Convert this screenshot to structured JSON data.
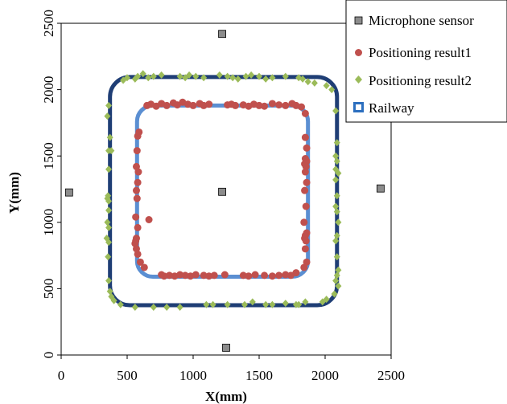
{
  "chart_data": {
    "type": "scatter",
    "xlabel": "X(mm)",
    "ylabel": "Y(mm)",
    "xlim": [
      0,
      2500
    ],
    "ylim": [
      0,
      2500
    ],
    "xticks": [
      "0",
      "500",
      "1000",
      "1500",
      "2000",
      "2500"
    ],
    "yticks": [
      "0",
      "500",
      "1000",
      "1500",
      "2000",
      "2500"
    ],
    "grid": false,
    "legend_position": "top-right",
    "legend": [
      {
        "key": "mic",
        "label": "Microphone sensor"
      },
      {
        "key": "r1",
        "label": "Positioning result1"
      },
      {
        "key": "r2",
        "label": "Positioning result2"
      },
      {
        "key": "rail",
        "label": "Railway"
      }
    ],
    "colors": {
      "mic": "#8c8c8c",
      "r1": "#c0504d",
      "r2": "#9bbb59",
      "rail_outer": "#1f3e75",
      "rail_inner": "#5b8fd2"
    },
    "series": [
      {
        "name": "Microphone sensor",
        "key": "mic",
        "points": [
          [
            1220,
            2420
          ],
          [
            60,
            1225
          ],
          [
            1220,
            1230
          ],
          [
            2420,
            1255
          ],
          [
            1250,
            55
          ]
        ]
      },
      {
        "name": "Railway",
        "key": "rail",
        "tracks": [
          {
            "track": "outer",
            "x_min": 370,
            "x_max": 2090,
            "y_min": 375,
            "y_max": 2095,
            "corner_radius": 150
          },
          {
            "track": "inner",
            "x_min": 575,
            "x_max": 1870,
            "y_min": 590,
            "y_max": 1880,
            "corner_radius": 120
          }
        ]
      },
      {
        "name": "Positioning result1",
        "key": "r1",
        "points": [
          [
            650,
            1880
          ],
          [
            680,
            1890
          ],
          [
            720,
            1875
          ],
          [
            760,
            1895
          ],
          [
            800,
            1880
          ],
          [
            850,
            1900
          ],
          [
            880,
            1885
          ],
          [
            920,
            1905
          ],
          [
            960,
            1890
          ],
          [
            1000,
            1880
          ],
          [
            1050,
            1895
          ],
          [
            1080,
            1880
          ],
          [
            1120,
            1890
          ],
          [
            1260,
            1885
          ],
          [
            1290,
            1890
          ],
          [
            1320,
            1880
          ],
          [
            1380,
            1885
          ],
          [
            1420,
            1875
          ],
          [
            1460,
            1890
          ],
          [
            1500,
            1880
          ],
          [
            1540,
            1875
          ],
          [
            1600,
            1895
          ],
          [
            1650,
            1885
          ],
          [
            1700,
            1880
          ],
          [
            1750,
            1895
          ],
          [
            1780,
            1880
          ],
          [
            1820,
            1870
          ],
          [
            1850,
            1820
          ],
          [
            590,
            1680
          ],
          [
            580,
            1650
          ],
          [
            575,
            1540
          ],
          [
            570,
            1420
          ],
          [
            585,
            1380
          ],
          [
            580,
            1300
          ],
          [
            570,
            1240
          ],
          [
            575,
            1180
          ],
          [
            565,
            1040
          ],
          [
            665,
            1020
          ],
          [
            580,
            960
          ],
          [
            570,
            880
          ],
          [
            565,
            860
          ],
          [
            560,
            840
          ],
          [
            570,
            800
          ],
          [
            580,
            760
          ],
          [
            600,
            700
          ],
          [
            630,
            660
          ],
          [
            1850,
            1640
          ],
          [
            1860,
            1560
          ],
          [
            1850,
            1480
          ],
          [
            1860,
            1460
          ],
          [
            1845,
            1440
          ],
          [
            1855,
            1420
          ],
          [
            1850,
            1380
          ],
          [
            1860,
            1300
          ],
          [
            1845,
            1240
          ],
          [
            1855,
            1120
          ],
          [
            1840,
            1000
          ],
          [
            1860,
            920
          ],
          [
            1850,
            900
          ],
          [
            1845,
            880
          ],
          [
            1855,
            860
          ],
          [
            1850,
            800
          ],
          [
            1860,
            700
          ],
          [
            1840,
            660
          ],
          [
            1780,
            620
          ],
          [
            760,
            605
          ],
          [
            780,
            595
          ],
          [
            820,
            600
          ],
          [
            860,
            595
          ],
          [
            900,
            605
          ],
          [
            940,
            600
          ],
          [
            980,
            595
          ],
          [
            1020,
            605
          ],
          [
            1080,
            600
          ],
          [
            1120,
            595
          ],
          [
            1160,
            600
          ],
          [
            1240,
            605
          ],
          [
            1380,
            600
          ],
          [
            1420,
            595
          ],
          [
            1470,
            605
          ],
          [
            1540,
            600
          ],
          [
            1600,
            595
          ],
          [
            1650,
            600
          ],
          [
            1700,
            605
          ],
          [
            1740,
            600
          ]
        ]
      },
      {
        "name": "Positioning result2",
        "key": "r2",
        "points": [
          [
            470,
            2070
          ],
          [
            500,
            2090
          ],
          [
            560,
            2080
          ],
          [
            580,
            2100
          ],
          [
            620,
            2120
          ],
          [
            660,
            2090
          ],
          [
            700,
            2100
          ],
          [
            760,
            2110
          ],
          [
            900,
            2100
          ],
          [
            940,
            2090
          ],
          [
            970,
            2110
          ],
          [
            1020,
            2100
          ],
          [
            1080,
            2090
          ],
          [
            1200,
            2110
          ],
          [
            1260,
            2100
          ],
          [
            1300,
            2090
          ],
          [
            1340,
            2080
          ],
          [
            1400,
            2100
          ],
          [
            1440,
            2110
          ],
          [
            1500,
            2100
          ],
          [
            1550,
            2080
          ],
          [
            1600,
            2090
          ],
          [
            1700,
            2100
          ],
          [
            1800,
            2090
          ],
          [
            1830,
            2080
          ],
          [
            1870,
            2060
          ],
          [
            1920,
            2050
          ],
          [
            2010,
            2030
          ],
          [
            2050,
            2000
          ],
          [
            360,
            1880
          ],
          [
            350,
            1800
          ],
          [
            370,
            1640
          ],
          [
            360,
            1540
          ],
          [
            380,
            1540
          ],
          [
            360,
            1400
          ],
          [
            355,
            1200
          ],
          [
            350,
            1180
          ],
          [
            360,
            1160
          ],
          [
            360,
            1090
          ],
          [
            350,
            1000
          ],
          [
            360,
            960
          ],
          [
            345,
            880
          ],
          [
            360,
            850
          ],
          [
            355,
            740
          ],
          [
            360,
            560
          ],
          [
            370,
            480
          ],
          [
            380,
            440
          ],
          [
            400,
            410
          ],
          [
            450,
            380
          ],
          [
            560,
            360
          ],
          [
            700,
            360
          ],
          [
            800,
            360
          ],
          [
            900,
            360
          ],
          [
            1100,
            380
          ],
          [
            1150,
            380
          ],
          [
            1260,
            380
          ],
          [
            1390,
            380
          ],
          [
            1450,
            400
          ],
          [
            1550,
            380
          ],
          [
            1600,
            380
          ],
          [
            1700,
            390
          ],
          [
            1780,
            380
          ],
          [
            1800,
            380
          ],
          [
            1850,
            400
          ],
          [
            2080,
            1840
          ],
          [
            2090,
            1600
          ],
          [
            2080,
            1500
          ],
          [
            2090,
            1460
          ],
          [
            2080,
            1400
          ],
          [
            2100,
            1370
          ],
          [
            2080,
            1320
          ],
          [
            2090,
            1200
          ],
          [
            2080,
            1120
          ],
          [
            2090,
            1080
          ],
          [
            2100,
            1000
          ],
          [
            2090,
            900
          ],
          [
            2080,
            860
          ],
          [
            2090,
            740
          ],
          [
            2100,
            640
          ],
          [
            2090,
            600
          ],
          [
            2080,
            560
          ],
          [
            2100,
            520
          ],
          [
            2070,
            460
          ],
          [
            2010,
            420
          ],
          [
            1980,
            400
          ]
        ]
      }
    ]
  }
}
